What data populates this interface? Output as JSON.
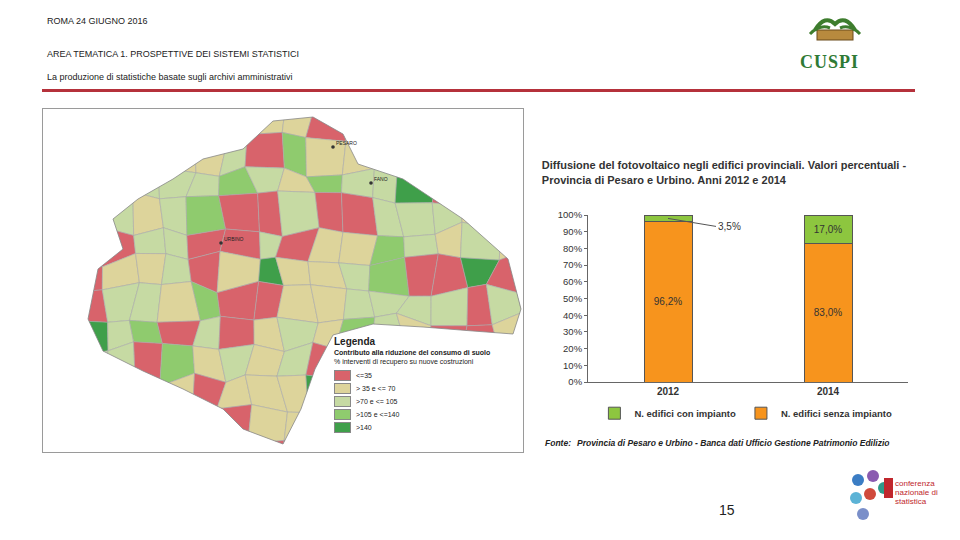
{
  "header": {
    "date": "ROMA 24 GIUGNO 2016",
    "area": "AREA TEMATICA 1. PROSPETTIVE DEI SISTEMI STATISTICI",
    "topic": "La produzione di statistiche basate sugli archivi amministrativi",
    "logo": "CUSPI"
  },
  "map": {
    "places": [
      "PESARO",
      "FANO",
      "URBINO"
    ],
    "legend_title": "Legenda",
    "legend_subtitle": [
      "Contributo alla riduzione del consumo di suolo",
      "% interventi di recupero su nuove costruzioni"
    ],
    "classes": [
      {
        "label": "<=35",
        "color": "#d8636b"
      },
      {
        "label": "> 35 e <= 70",
        "color": "#ddd49b"
      },
      {
        "label": ">70 e <= 105",
        "color": "#c6daa3"
      },
      {
        "label": ">105 e <=140",
        "color": "#8fcb6e"
      },
      {
        "label": ">140",
        "color": "#3f9f4a"
      }
    ]
  },
  "chart_data": {
    "type": "bar",
    "stacked": true,
    "data_labels": true,
    "title": [
      "Diffusione del fotovoltaico negli edifici provinciali. Valori percentuali -",
      "Provincia di Pesaro e Urbino. Anni 2012 e 2014"
    ],
    "categories": [
      "2012",
      "2014"
    ],
    "series": [
      {
        "name": "N. edifici senza impianto",
        "color": "#f7941d",
        "values": [
          96.2,
          83.0
        ],
        "value_labels": [
          "96,2%",
          "83,0%"
        ]
      },
      {
        "name": "N. edifici con impianto",
        "color": "#8dc63f",
        "values": [
          3.5,
          17.0
        ],
        "value_labels": [
          "3,5%",
          "17,0%"
        ]
      }
    ],
    "ylim": [
      0,
      100
    ],
    "yticks": [
      {
        "value": 0,
        "label": "0%"
      },
      {
        "value": 10,
        "label": "10%"
      },
      {
        "value": 20,
        "label": "20%"
      },
      {
        "value": 30,
        "label": "30%"
      },
      {
        "value": 40,
        "label": "40%"
      },
      {
        "value": 50,
        "label": "50%"
      },
      {
        "value": 60,
        "label": "60%"
      },
      {
        "value": 70,
        "label": "70%"
      },
      {
        "value": 80,
        "label": "80%"
      },
      {
        "value": 90,
        "label": "90%"
      },
      {
        "value": 100,
        "label": "100%"
      }
    ],
    "grid": false,
    "legend": "bottom",
    "source_label": "Fonte:",
    "source": "Provincia di Pesaro e Urbino - Banca dati Ufficio Gestione Patrimonio Edilizio"
  },
  "footer": {
    "page": "15",
    "conference": "conferenza nazionale di statistica"
  }
}
